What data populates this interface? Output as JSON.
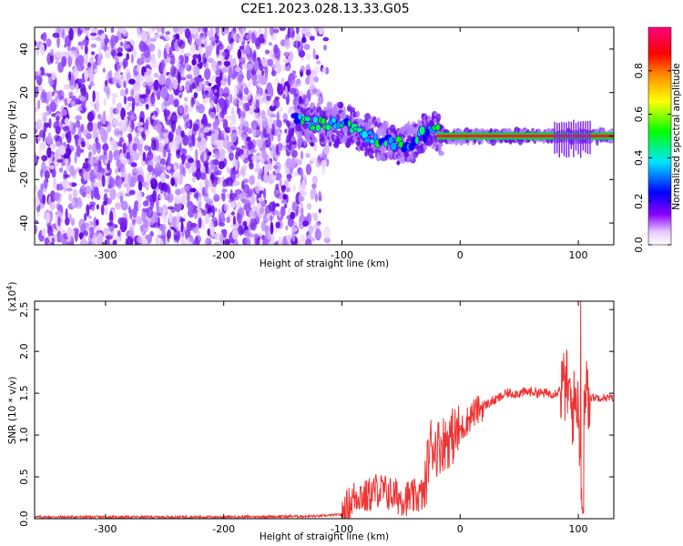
{
  "title": "C2E1.2023.028.13.33.G05",
  "chart_data": [
    {
      "type": "heatmap",
      "xlabel": "Height of straight line (km)",
      "ylabel": "Frequency (Hz)",
      "xlim": [
        -360,
        130
      ],
      "ylim": [
        -50,
        50
      ],
      "x_ticks": [
        -300,
        -200,
        -100,
        0,
        100
      ],
      "x_tick_labels": [
        "-300",
        "-200",
        "-100",
        "0",
        "100"
      ],
      "y_ticks": [
        -40,
        -20,
        0,
        20,
        40
      ],
      "y_tick_labels": [
        "-40",
        "-20",
        "0",
        "20",
        "40"
      ],
      "noise_region_x": [
        -360,
        -112
      ],
      "noise_region_y": [
        -50,
        50
      ],
      "signal_track": [
        {
          "x": -140,
          "y": 7
        },
        {
          "x": -120,
          "y": 5
        },
        {
          "x": -100,
          "y": 5
        },
        {
          "x": -90,
          "y": 4
        },
        {
          "x": -80,
          "y": 0
        },
        {
          "x": -70,
          "y": -1
        },
        {
          "x": -60,
          "y": -2
        },
        {
          "x": -50,
          "y": -4
        },
        {
          "x": -40,
          "y": -3
        },
        {
          "x": -30,
          "y": 1
        },
        {
          "x": -20,
          "y": 2
        },
        {
          "x": -15,
          "y": 0
        },
        {
          "x": 0,
          "y": 0
        },
        {
          "x": 130,
          "y": 0
        }
      ],
      "colorbar": {
        "label": "Normalized spectral amplitude",
        "range": [
          0,
          1
        ],
        "ticks": [
          0.0,
          0.2,
          0.4,
          0.6,
          0.8
        ],
        "tick_labels": [
          "0.0",
          "0.2",
          "0.4",
          "0.6",
          "0.8"
        ],
        "colors": [
          "#ffffff",
          "#8b00ff",
          "#0000ff",
          "#00e5ff",
          "#00ff00",
          "#ffff00",
          "#ff8c00",
          "#ff0000",
          "#ff0080"
        ]
      }
    },
    {
      "type": "line",
      "xlabel": "Height of straight line (km)",
      "ylabel": "SNR (10 * v/v)",
      "y_multiplier": "(x10",
      "y_multiplier_exp": "4",
      "y_multiplier_close": ")",
      "xlim": [
        -360,
        130
      ],
      "ylim": [
        0,
        2.6
      ],
      "x_ticks": [
        -300,
        -200,
        -100,
        0,
        100
      ],
      "x_tick_labels": [
        "-300",
        "-200",
        "-100",
        "0",
        "100"
      ],
      "y_ticks": [
        0.0,
        0.5,
        1.0,
        1.5,
        2.0,
        2.5
      ],
      "y_tick_labels": [
        "0.0",
        "0.5",
        "1.0",
        "1.5",
        "2.0",
        "2.5"
      ],
      "line_color": "#ee3333",
      "series": [
        {
          "x": [
            -360,
            -300,
            -200,
            -120,
            -100,
            -95,
            -90,
            -85,
            -80,
            -70,
            -60,
            -50,
            -40,
            -30,
            -28,
            -25,
            -20,
            -10,
            0,
            10,
            20,
            30,
            40,
            50,
            60,
            70,
            80,
            85,
            90,
            95,
            100,
            103,
            105,
            107,
            110,
            120,
            130
          ],
          "y": [
            0.02,
            0.02,
            0.02,
            0.03,
            0.05,
            0.15,
            0.25,
            0.3,
            0.25,
            0.35,
            0.3,
            0.25,
            0.25,
            0.3,
            0.6,
            0.9,
            0.85,
            0.95,
            1.05,
            1.25,
            1.35,
            1.42,
            1.5,
            1.5,
            1.52,
            1.5,
            1.5,
            1.55,
            1.6,
            1.3,
            1.5,
            0.1,
            1.4,
            1.5,
            1.45,
            1.45,
            1.44
          ]
        }
      ]
    }
  ]
}
